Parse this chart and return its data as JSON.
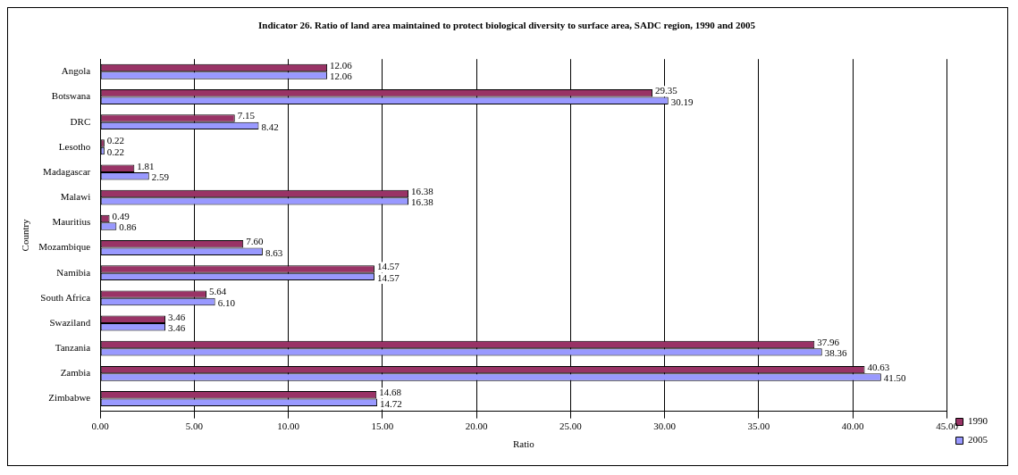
{
  "chart_data": {
    "type": "bar",
    "orientation": "horizontal",
    "title": "Indicator 26. Ratio of land area maintained to protect biological diversity to surface area, SADC region, 1990 and 2005",
    "xlabel": "Ratio",
    "ylabel": "Country",
    "categories": [
      "Angola",
      "Botswana",
      "DRC",
      "Lesotho",
      "Madagascar",
      "Malawi",
      "Mauritius",
      "Mozambique",
      "Namibia",
      "South Africa",
      "Swaziland",
      "Tanzania",
      "Zambia",
      "Zimbabwe"
    ],
    "series": [
      {
        "name": "1990",
        "color": "#993366",
        "values": [
          12.06,
          29.35,
          7.15,
          0.22,
          1.81,
          16.38,
          0.49,
          7.6,
          14.57,
          5.64,
          3.46,
          37.96,
          40.63,
          14.68
        ],
        "value_labels": [
          "12.06",
          "29.35",
          "7.15",
          "0.22",
          "1.81",
          "16.38",
          "0.49",
          "7.60",
          "14.57",
          "5.64",
          "3.46",
          "37.96",
          "40.63",
          "14.68"
        ]
      },
      {
        "name": "2005",
        "color": "#9999ff",
        "values": [
          12.06,
          30.19,
          8.42,
          0.22,
          2.59,
          16.38,
          0.86,
          8.63,
          14.57,
          6.1,
          3.46,
          38.36,
          41.5,
          14.72
        ],
        "value_labels": [
          "12.06",
          "30.19",
          "8.42",
          "0.22",
          "2.59",
          "16.38",
          "0.86",
          "8.63",
          "14.57",
          "6.10",
          "3.46",
          "38.36",
          "41.50",
          "14.72"
        ]
      }
    ],
    "xlim": [
      0,
      45
    ],
    "xticks": [
      {
        "value": 0,
        "label": "0.00"
      },
      {
        "value": 5,
        "label": "5.00"
      },
      {
        "value": 10,
        "label": "10.00"
      },
      {
        "value": 15,
        "label": "15.00"
      },
      {
        "value": 20,
        "label": "20.00"
      },
      {
        "value": 25,
        "label": "25.00"
      },
      {
        "value": 30,
        "label": "30.00"
      },
      {
        "value": 35,
        "label": "35.00"
      },
      {
        "value": 40,
        "label": "40.00"
      },
      {
        "value": 45,
        "label": "45.00"
      }
    ],
    "grid": "x",
    "legend": "bottom right"
  }
}
